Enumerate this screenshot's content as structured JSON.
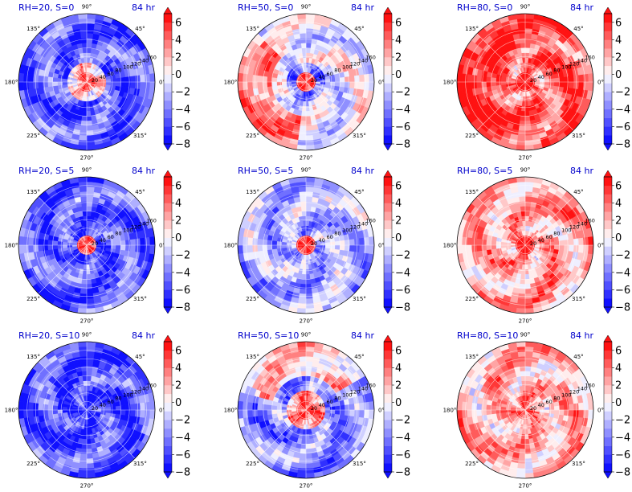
{
  "chart_data": {
    "type": "polar-contour-grid",
    "colormap": "bwr",
    "diverging_colors": {
      "negative": "#0000ff",
      "zero": "#ffffff",
      "positive": "#ff0000"
    },
    "shared_theta_ticks": [
      "90°",
      "45°",
      "0°",
      "315°",
      "270°",
      "225°",
      "180°",
      "135°"
    ],
    "shared_r_ticks": [
      "20",
      "40",
      "60",
      "80",
      "100",
      "120",
      "140",
      "160"
    ],
    "colorbar_ticks": [
      "6",
      "4",
      "2",
      "0",
      "−2",
      "−4",
      "−6",
      "−8"
    ],
    "colorbar_range": [
      -8,
      7
    ],
    "colorbar_levels": 15,
    "colorbar_extend": "both",
    "panels": [
      {
        "title": "RH=20, S=0",
        "time": "84 hr",
        "core": 4.5,
        "eyewall": 1.0,
        "bias": -5.0,
        "band": 0.0
      },
      {
        "title": "RH=50, S=0",
        "time": "84 hr",
        "core": 5.5,
        "eyewall": -4.5,
        "bias": -0.5,
        "band": 4.0
      },
      {
        "title": "RH=80, S=0",
        "time": "84 hr",
        "core": 7.0,
        "eyewall": 3.0,
        "bias": 4.5,
        "band": 2.0
      },
      {
        "title": "RH=20, S=5",
        "time": "84 hr",
        "core": 5.0,
        "eyewall": -6.0,
        "bias": -5.0,
        "band": 0.0
      },
      {
        "title": "RH=50, S=5",
        "time": "84 hr",
        "core": 6.5,
        "eyewall": -3.0,
        "bias": -2.5,
        "band": 0.0
      },
      {
        "title": "RH=80, S=5",
        "time": "84 hr",
        "core": 7.0,
        "eyewall": 2.0,
        "bias": 2.5,
        "band": 0.0
      },
      {
        "title": "RH=20, S=10",
        "time": "84 hr",
        "core": -6.0,
        "eyewall": -6.0,
        "bias": -5.5,
        "band": 0.0
      },
      {
        "title": "RH=50, S=10",
        "time": "84 hr",
        "core": 5.0,
        "eyewall": 3.0,
        "bias": -3.5,
        "band": 5.0
      },
      {
        "title": "RH=80, S=10",
        "time": "84 hr",
        "core": 4.0,
        "eyewall": 3.0,
        "bias": 2.0,
        "band": 0.0
      }
    ]
  }
}
